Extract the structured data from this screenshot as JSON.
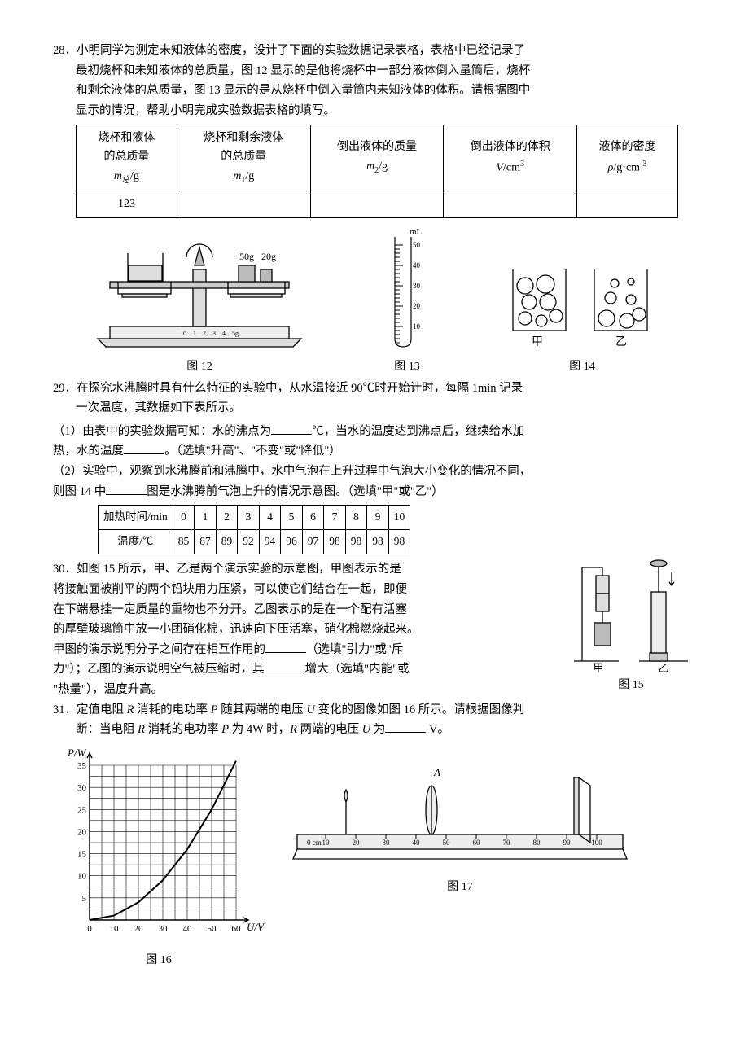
{
  "q28": {
    "num": "28．",
    "line1": "小明同学为测定未知液体的密度，设计了下面的实验数据记录表格，表格中已经记录了",
    "line2": "最初烧杯和未知液体的总质量，图 12 显示的是他将烧杯中一部分液体倒入量筒后，烧杯",
    "line3": "和剩余液体的总质量，图 13 显示的是从烧杯中倒入量筒内未知液体的体积。请根据图中",
    "line4": "显示的情况，帮助小明完成实验数据表格的填写。",
    "table": {
      "headers": [
        {
          "l1": "烧杯和液体",
          "l2": "的总质量",
          "sym_i": "m",
          "sym_sub": "总",
          "unit": "/g"
        },
        {
          "l1": "烧杯和剩余液体",
          "l2": "的总质量",
          "sym_i": "m",
          "sym_sub": "1",
          "unit": "/g"
        },
        {
          "l1": "倒出液体的质量",
          "l2": "",
          "sym_i": "m",
          "sym_sub": "2",
          "unit": "/g"
        },
        {
          "l1": "倒出液体的体积",
          "l2": "",
          "sym_i": "V",
          "sym_sub": "",
          "unit": "/cm",
          "sup": "3"
        },
        {
          "l1": "液体的密度",
          "l2": "",
          "sym_i": "ρ",
          "sym_sub": "",
          "unit": "/g·cm",
          "sup": "-3"
        }
      ],
      "row": [
        "123",
        "",
        "",
        "",
        ""
      ]
    }
  },
  "fig12": {
    "weight_labels": [
      "50g",
      "20g"
    ],
    "ruler_marks": [
      "0",
      "1",
      "2",
      "3",
      "4",
      "5g"
    ],
    "caption": "图 12",
    "colors": {
      "stroke": "#000000",
      "fill": "#d9d9d9"
    }
  },
  "fig13": {
    "unit": "mL",
    "ticks": [
      50,
      40,
      30,
      20,
      10
    ],
    "caption": "图 13",
    "colors": {
      "stroke": "#000000"
    }
  },
  "fig14": {
    "left_label": "甲",
    "right_label": "乙",
    "caption": "图 14",
    "colors": {
      "stroke": "#000000"
    }
  },
  "q29": {
    "num": "29．",
    "line1": "在探究水沸腾时具有什么特征的实验中，从水温接近 90℃时开始计时，每隔 1min 记录",
    "line2": "一次温度，其数据如下表所示。",
    "p1a": "（1）由表中的实验数据可知：水的沸点为",
    "p1b": "℃，当水的温度达到沸点后，继续给水加",
    "p1c": "热，水的温度",
    "p1d": "。（选填\"升高\"、\"不变\"或\"降低\"）",
    "p2a": "（2）实验中，观察到水沸腾前和沸腾中，水中气泡在上升过程中气泡大小变化的情况不同，",
    "p2b": "则图 14 中",
    "p2c": "图是水沸腾前气泡上升的情况示意图。（选填\"甲\"或\"乙\"）",
    "table": {
      "header_label": "加热时间/min",
      "header_vals": [
        "0",
        "1",
        "2",
        "3",
        "4",
        "5",
        "6",
        "7",
        "8",
        "9",
        "10"
      ],
      "row_label": "温度/℃",
      "row_vals": [
        "85",
        "87",
        "89",
        "92",
        "94",
        "96",
        "97",
        "98",
        "98",
        "98",
        "98"
      ]
    }
  },
  "q30": {
    "num": "30．",
    "l1": "如图 15 所示，甲、乙是两个演示实验的示意图，甲图表示的是",
    "l2": "将接触面被削平的两个铅块用力压紧，可以使它们结合在一起，即便",
    "l3": "在下端悬挂一定质量的重物也不分开。乙图表示的是在一个配有活塞",
    "l4": "的厚壁玻璃筒中放一小团硝化棉，迅速向下压活塞，硝化棉燃烧起来。",
    "l5a": "甲图的演示说明分子之间存在相互作用的",
    "l5b": "（选填\"引力\"或\"斥",
    "l6a": "力\"）；乙图的演示说明空气被压缩时，其",
    "l6b": "增大（选填\"内能\"或",
    "l7": "\"热量\"），温度升高。"
  },
  "fig15": {
    "left_label": "甲",
    "right_label": "乙",
    "caption": "图 15",
    "colors": {
      "stroke": "#000000"
    }
  },
  "q31": {
    "num": "31．",
    "l1a": "定值电阻 ",
    "l1b": " 消耗的电功率 ",
    "l1c": " 随其两端的电压 ",
    "l1d": " 变化的图像如图 16 所示。请根据图像判",
    "l2a": "断：当电阻 ",
    "l2b": " 消耗的电功率 ",
    "l2c": " 为 4W 时，",
    "l2d": " 两端的电压 ",
    "l2e": " 为",
    "l2f": " V。",
    "R": "R",
    "P": "P",
    "U": "U"
  },
  "fig16": {
    "ylabel": "P/W",
    "xlabel": "U/V",
    "yticks": [
      5,
      10,
      15,
      20,
      25,
      30,
      35
    ],
    "xticks": [
      0,
      10,
      20,
      30,
      40,
      50,
      60
    ],
    "caption": "图 16",
    "colors": {
      "grid": "#000000",
      "bg": "#ffffff"
    },
    "curve": [
      [
        0,
        0
      ],
      [
        10,
        1
      ],
      [
        20,
        4
      ],
      [
        30,
        9
      ],
      [
        40,
        16
      ],
      [
        50,
        25
      ],
      [
        60,
        36
      ]
    ]
  },
  "fig17": {
    "letter": "A",
    "ruler_start": "0 cm",
    "ruler_ticks": [
      "10",
      "20",
      "30",
      "40",
      "50",
      "60",
      "70",
      "80",
      "90",
      "100"
    ],
    "caption": "图 17",
    "colors": {
      "stroke": "#000000"
    }
  }
}
